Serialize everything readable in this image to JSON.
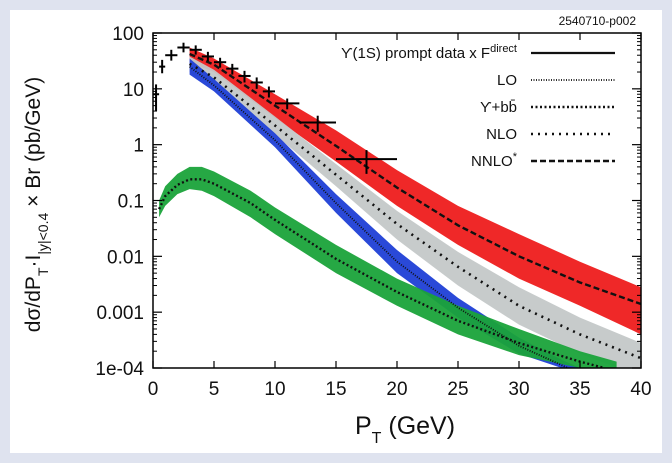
{
  "chart_data": {
    "type": "line",
    "reference_id": "2540710-p002",
    "xlabel": "P_T (GeV)",
    "ylabel": "dσ/dP_T·I_|y|<0.4 × Br (pb/GeV)",
    "xlim": [
      0,
      40
    ],
    "ylim": [
      0.0001,
      100
    ],
    "yscale": "log",
    "x_ticks": [
      0,
      5,
      10,
      15,
      20,
      25,
      30,
      35,
      40
    ],
    "y_ticks": [
      {
        "value": 100,
        "label": "100"
      },
      {
        "value": 10,
        "label": "10"
      },
      {
        "value": 1,
        "label": "1"
      },
      {
        "value": 0.1,
        "label": "0.1"
      },
      {
        "value": 0.01,
        "label": "0.01"
      },
      {
        "value": 0.001,
        "label": "0.001"
      },
      {
        "value": 0.0001,
        "label": "1e-04"
      }
    ],
    "legend_position": "top-right",
    "data_points": [
      {
        "x": 0.25,
        "y": 8,
        "xerr": 0.25,
        "yerr_lo": 4,
        "yerr_hi": 4
      },
      {
        "x": 0.75,
        "y": 25,
        "xerr": 0.25,
        "yerr_lo": 6,
        "yerr_hi": 8
      },
      {
        "x": 1.5,
        "y": 40,
        "xerr": 0.5,
        "yerr_lo": 8,
        "yerr_hi": 10
      },
      {
        "x": 2.5,
        "y": 55,
        "xerr": 0.5,
        "yerr_lo": 10,
        "yerr_hi": 12
      },
      {
        "x": 3.5,
        "y": 50,
        "xerr": 0.5,
        "yerr_lo": 9,
        "yerr_hi": 10
      },
      {
        "x": 4.5,
        "y": 38,
        "xerr": 0.5,
        "yerr_lo": 7,
        "yerr_hi": 8
      },
      {
        "x": 5.5,
        "y": 30,
        "xerr": 0.5,
        "yerr_lo": 6,
        "yerr_hi": 6
      },
      {
        "x": 6.5,
        "y": 23,
        "xerr": 0.5,
        "yerr_lo": 5,
        "yerr_hi": 5
      },
      {
        "x": 7.5,
        "y": 17,
        "xerr": 0.5,
        "yerr_lo": 4,
        "yerr_hi": 4
      },
      {
        "x": 8.5,
        "y": 13,
        "xerr": 0.5,
        "yerr_lo": 3,
        "yerr_hi": 3
      },
      {
        "x": 9.5,
        "y": 9,
        "xerr": 0.5,
        "yerr_lo": 2,
        "yerr_hi": 2
      },
      {
        "x": 11,
        "y": 5.5,
        "xerr": 1,
        "yerr_lo": 1.2,
        "yerr_hi": 1.2
      },
      {
        "x": 13.5,
        "y": 2.5,
        "xerr": 1.5,
        "yerr_lo": 0.8,
        "yerr_hi": 0.8
      },
      {
        "x": 17.5,
        "y": 0.55,
        "xerr": 2.5,
        "yerr_lo": 0.25,
        "yerr_hi": 0.25
      }
    ],
    "bands": [
      {
        "name": "NNLO*",
        "color": "#ee1c1c",
        "x": [
          3,
          5,
          10,
          15,
          20,
          25,
          30,
          35,
          40
        ],
        "lower": [
          30,
          20,
          3,
          0.5,
          0.08,
          0.016,
          0.004,
          0.0013,
          0.0004
        ],
        "upper": [
          55,
          35,
          8,
          1.8,
          0.35,
          0.08,
          0.025,
          0.008,
          0.0028
        ]
      },
      {
        "name": "NLO",
        "color": "#c4c8c8",
        "x": [
          3,
          5,
          10,
          15,
          20,
          25,
          30,
          35,
          40
        ],
        "lower": [
          20,
          11,
          1.5,
          0.18,
          0.02,
          0.003,
          0.0006,
          0.00018,
          7e-05
        ],
        "upper": [
          38,
          22,
          3.2,
          0.45,
          0.065,
          0.012,
          0.0028,
          0.0008,
          0.00028
        ]
      },
      {
        "name": "LO",
        "color": "#1f3fd6",
        "x": [
          3,
          5,
          10,
          15,
          20,
          25,
          30,
          33.5,
          35
        ],
        "lower": [
          18,
          9,
          0.9,
          0.06,
          0.005,
          0.0008,
          0.00018,
          0.0001,
          7e-05
        ],
        "upper": [
          35,
          15,
          1.6,
          0.13,
          0.013,
          0.0018,
          0.00035,
          0.00014,
          0.0001
        ]
      },
      {
        "name": "Υ+bb̄",
        "color": "#1aa33a",
        "x": [
          0.5,
          1,
          2,
          3,
          4,
          5,
          8,
          10,
          15,
          20,
          25,
          30,
          35,
          38
        ],
        "lower": [
          0.05,
          0.08,
          0.13,
          0.16,
          0.15,
          0.12,
          0.05,
          0.025,
          0.005,
          0.0013,
          0.0004,
          0.00017,
          0.0001,
          0.0001
        ],
        "upper": [
          0.1,
          0.18,
          0.3,
          0.4,
          0.4,
          0.33,
          0.15,
          0.075,
          0.016,
          0.004,
          0.0013,
          0.0005,
          0.0002,
          0.00013
        ]
      }
    ],
    "curves": [
      {
        "name": "NNLO*",
        "style": "dashed",
        "x": [
          3,
          5,
          10,
          15,
          20,
          25,
          30,
          35,
          40
        ],
        "y": [
          42,
          27,
          5,
          0.95,
          0.17,
          0.036,
          0.01,
          0.0034,
          0.0014
        ]
      },
      {
        "name": "NLO",
        "style": "sparse-dotted",
        "x": [
          3,
          5,
          10,
          15,
          20,
          25,
          30,
          35,
          40
        ],
        "y": [
          28,
          16,
          2.2,
          0.29,
          0.038,
          0.0065,
          0.0013,
          0.0004,
          0.00015
        ]
      },
      {
        "name": "LO",
        "style": "fine-dotted",
        "x": [
          3,
          5,
          10,
          15,
          20,
          25,
          30,
          34
        ],
        "y": [
          25,
          11.5,
          1.2,
          0.09,
          0.008,
          0.0012,
          0.00025,
          0.0001
        ]
      },
      {
        "name": "Υ+bb̄",
        "style": "dotted",
        "x": [
          0.5,
          1,
          2,
          3,
          4,
          5,
          8,
          10,
          15,
          20,
          25,
          30,
          35,
          37
        ],
        "y": [
          0.07,
          0.12,
          0.19,
          0.24,
          0.24,
          0.2,
          0.09,
          0.045,
          0.009,
          0.0023,
          0.0007,
          0.00028,
          0.00013,
          0.0001
        ]
      }
    ],
    "legend": [
      {
        "label": "ϒ(1S) prompt data x F",
        "superscript": "direct",
        "style": "solid"
      },
      {
        "label": "LO",
        "style": "fine-dotted"
      },
      {
        "label": "ϒ+bb̄",
        "style": "dotted"
      },
      {
        "label": "NLO",
        "style": "sparse-dotted"
      },
      {
        "label": "NNLO",
        "superscript": "*",
        "style": "dashed"
      }
    ]
  }
}
